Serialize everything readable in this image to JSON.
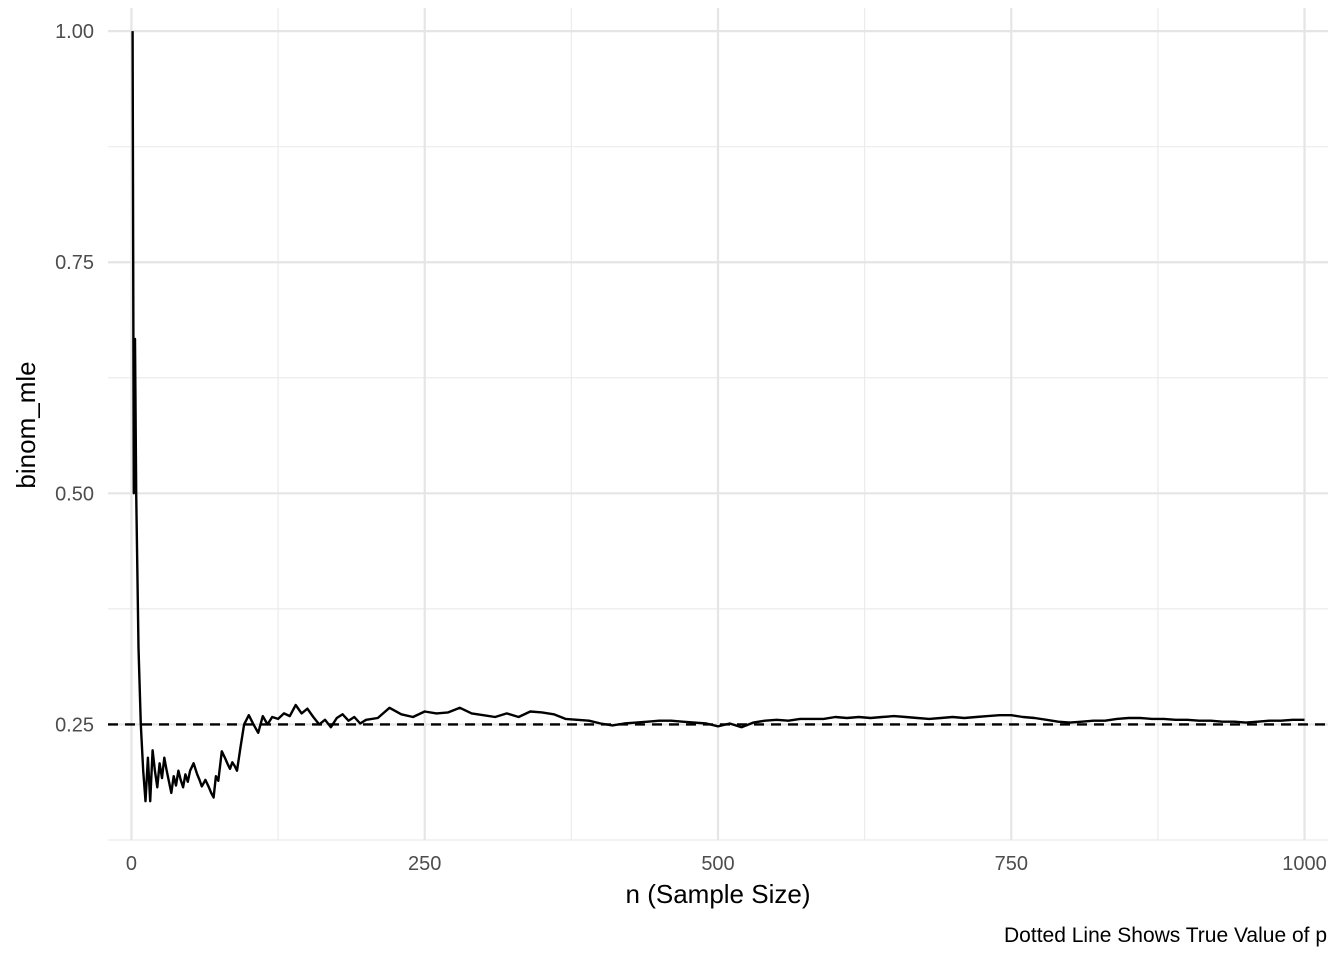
{
  "chart_data": {
    "type": "line",
    "title": "",
    "xlabel": "n (Sample Size)",
    "ylabel": "binom_mle",
    "caption": "Dotted Line Shows True Value of p",
    "xlim": [
      -20,
      1020
    ],
    "ylim": [
      0.125,
      1.025
    ],
    "x_ticks": [
      0,
      250,
      500,
      750,
      1000
    ],
    "x_tick_labels": [
      "0",
      "250",
      "500",
      "750",
      "1000"
    ],
    "y_ticks": [
      0.25,
      0.5,
      0.75,
      1.0
    ],
    "y_tick_labels": [
      "0.25",
      "0.50",
      "0.75",
      "1.00"
    ],
    "grid": true,
    "reference_line": {
      "y": 0.25,
      "style": "dashed",
      "color": "#000000"
    },
    "series": [
      {
        "color": "#000000",
        "x": [
          1,
          2,
          3,
          4,
          6,
          8,
          10,
          12,
          14,
          16,
          18,
          20,
          22,
          24,
          26,
          28,
          30,
          32,
          34,
          36,
          38,
          40,
          42,
          44,
          46,
          48,
          50,
          53,
          56,
          58,
          60,
          63,
          66,
          68,
          70,
          72,
          74,
          77,
          80,
          82,
          84,
          86,
          88,
          90,
          93,
          96,
          100,
          104,
          108,
          112,
          116,
          120,
          125,
          130,
          135,
          140,
          145,
          150,
          155,
          160,
          165,
          170,
          175,
          180,
          185,
          190,
          195,
          200,
          210,
          220,
          230,
          240,
          250,
          260,
          270,
          280,
          290,
          300,
          310,
          320,
          330,
          340,
          350,
          360,
          370,
          380,
          390,
          400,
          410,
          420,
          430,
          440,
          450,
          460,
          470,
          480,
          490,
          500,
          510,
          520,
          530,
          540,
          550,
          560,
          570,
          580,
          590,
          600,
          610,
          620,
          630,
          640,
          650,
          660,
          670,
          680,
          690,
          700,
          710,
          720,
          730,
          740,
          750,
          760,
          770,
          780,
          790,
          800,
          810,
          820,
          830,
          840,
          850,
          860,
          870,
          880,
          890,
          900,
          910,
          920,
          930,
          940,
          950,
          960,
          970,
          980,
          990,
          1000
        ],
        "y": [
          1.0,
          0.5,
          0.667,
          0.5,
          0.333,
          0.25,
          0.2,
          0.167,
          0.214,
          0.167,
          0.222,
          0.2,
          0.182,
          0.208,
          0.192,
          0.214,
          0.2,
          0.188,
          0.176,
          0.194,
          0.184,
          0.2,
          0.19,
          0.182,
          0.196,
          0.188,
          0.2,
          0.208,
          0.196,
          0.19,
          0.183,
          0.19,
          0.182,
          0.176,
          0.171,
          0.194,
          0.189,
          0.221,
          0.213,
          0.207,
          0.202,
          0.209,
          0.205,
          0.2,
          0.226,
          0.25,
          0.26,
          0.25,
          0.241,
          0.259,
          0.25,
          0.258,
          0.256,
          0.262,
          0.259,
          0.271,
          0.262,
          0.267,
          0.258,
          0.25,
          0.255,
          0.247,
          0.257,
          0.261,
          0.254,
          0.258,
          0.251,
          0.255,
          0.257,
          0.268,
          0.261,
          0.258,
          0.264,
          0.262,
          0.263,
          0.268,
          0.262,
          0.26,
          0.258,
          0.262,
          0.258,
          0.264,
          0.263,
          0.261,
          0.256,
          0.255,
          0.254,
          0.251,
          0.249,
          0.251,
          0.252,
          0.253,
          0.254,
          0.254,
          0.253,
          0.252,
          0.251,
          0.248,
          0.251,
          0.247,
          0.252,
          0.254,
          0.255,
          0.254,
          0.256,
          0.256,
          0.256,
          0.258,
          0.257,
          0.258,
          0.257,
          0.258,
          0.259,
          0.258,
          0.257,
          0.256,
          0.257,
          0.258,
          0.257,
          0.258,
          0.259,
          0.26,
          0.26,
          0.258,
          0.257,
          0.255,
          0.253,
          0.252,
          0.253,
          0.254,
          0.254,
          0.256,
          0.257,
          0.257,
          0.256,
          0.256,
          0.255,
          0.255,
          0.254,
          0.254,
          0.253,
          0.253,
          0.252,
          0.253,
          0.254,
          0.254,
          0.255,
          0.255
        ]
      }
    ]
  }
}
